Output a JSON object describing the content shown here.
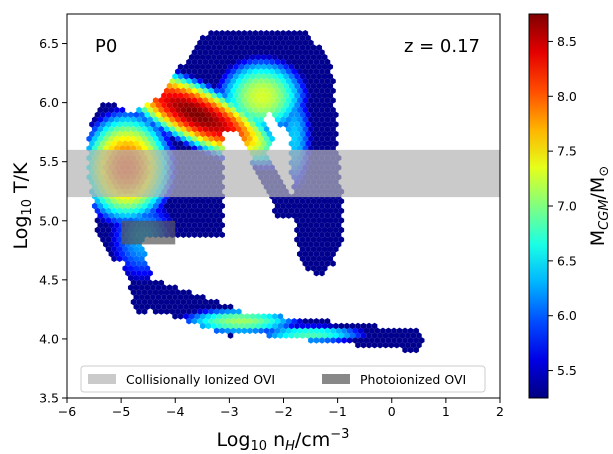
{
  "chart_data": {
    "type": "heatmap",
    "panel_label": "P0",
    "redshift_label": "z = 0.17",
    "xlabel_main": "Log",
    "xlabel_sub": "10",
    "xlabel_rest": " n",
    "xlabel_sub2": "H",
    "xlabel_unit": "/cm",
    "xlabel_sup": "−3",
    "ylabel_main": "Log",
    "ylabel_sub": "10",
    "ylabel_rest": " T/K",
    "xlim": [
      -6,
      2
    ],
    "ylim": [
      3.5,
      6.75
    ],
    "xticks": [
      "−6",
      "−5",
      "−4",
      "−3",
      "−2",
      "−1",
      "0",
      "1",
      "2"
    ],
    "xtick_values": [
      -6,
      -5,
      -4,
      -3,
      -2,
      -1,
      0,
      1,
      2
    ],
    "yticks": [
      "3.5",
      "4.0",
      "4.5",
      "5.0",
      "5.5",
      "6.0",
      "6.5"
    ],
    "ytick_values": [
      3.5,
      4.0,
      4.5,
      5.0,
      5.5,
      6.0,
      6.5
    ],
    "colorbar": {
      "label_main": "M",
      "label_sub": "CGM",
      "label_rest": "/M",
      "label_sun": "⊙",
      "range": [
        5.25,
        8.75
      ],
      "ticks": [
        "5.5",
        "6.0",
        "6.5",
        "7.0",
        "7.5",
        "8.0",
        "8.5"
      ],
      "tick_values": [
        5.5,
        6.0,
        6.5,
        7.0,
        7.5,
        8.0,
        8.5
      ],
      "colormap": "jet"
    },
    "shaded_regions": [
      {
        "name": "Collisionally Ionized OVI",
        "x": [
          -6,
          2
        ],
        "y": [
          5.2,
          5.6
        ],
        "color": "#b4b4b4",
        "opacity": 0.7
      },
      {
        "name": "Photoionized OVI",
        "x": [
          -5,
          -4
        ],
        "y": [
          4.8,
          5.0
        ],
        "color": "#555555",
        "opacity": 0.7
      }
    ],
    "legend": {
      "position": "lower-center",
      "entries": [
        "Collisionally Ionized OVI",
        "Photoionized OVI"
      ]
    },
    "distribution_blobs": [
      {
        "x": -3.6,
        "y": 5.9,
        "sx": 0.75,
        "sy": 0.2,
        "rho": -0.75,
        "peak": 8.75
      },
      {
        "x": -4.9,
        "y": 5.45,
        "sx": 0.45,
        "sy": 0.25,
        "rho": 0.0,
        "peak": 8.05
      },
      {
        "x": -2.4,
        "y": 6.05,
        "sx": 0.5,
        "sy": 0.2,
        "rho": 0.0,
        "peak": 7.3
      },
      {
        "x": -2.8,
        "y": 4.15,
        "sx": 0.7,
        "sy": 0.07,
        "rho": 0.0,
        "peak": 7.1
      },
      {
        "x": -1.5,
        "y": 4.04,
        "sx": 0.7,
        "sy": 0.05,
        "rho": 0.0,
        "peak": 6.85
      },
      {
        "x": -1.8,
        "y": 5.7,
        "sx": 0.25,
        "sy": 0.35,
        "rho": 0.0,
        "peak": 6.4
      },
      {
        "x": -4.6,
        "y": 4.85,
        "sx": 0.5,
        "sy": 0.3,
        "rho": 0.0,
        "peak": 6.3
      }
    ]
  }
}
